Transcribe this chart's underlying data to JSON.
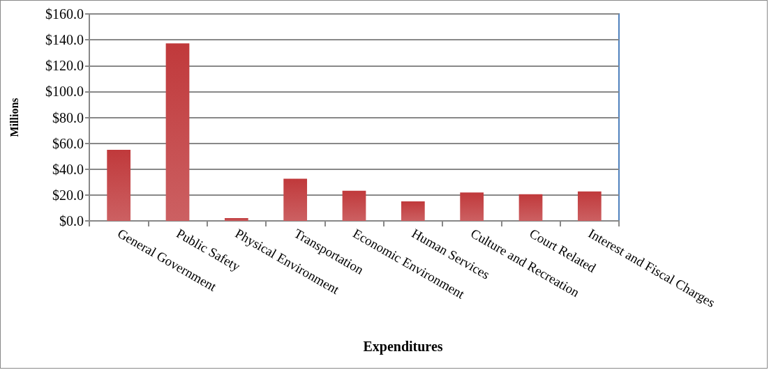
{
  "chart_data": {
    "type": "bar",
    "xlabel": "Expenditures",
    "ylabel": "Millions",
    "categories": [
      "General Government",
      "Public Safety",
      "Physical Environment",
      "Transportation",
      "Economic Environment",
      "Human Services",
      "Culture and Recreation",
      "Court Related",
      "Interest and Fiscal Charges"
    ],
    "values": [
      55,
      137.3,
      2.1,
      32.6,
      23.3,
      15.1,
      21.9,
      20.6,
      22.8
    ],
    "color": "#c0393b",
    "ylim": [
      0,
      160
    ],
    "yticks": [
      {
        "value": 0,
        "label": "$0.0"
      },
      {
        "value": 20,
        "label": "$20.0"
      },
      {
        "value": 40,
        "label": "$40.0"
      },
      {
        "value": 60,
        "label": "$60.0"
      },
      {
        "value": 80,
        "label": "$80.0"
      },
      {
        "value": 100,
        "label": "$100.0"
      },
      {
        "value": 120,
        "label": "$120.0"
      },
      {
        "value": 140,
        "label": "$140.0"
      },
      {
        "value": 160,
        "label": "$160.0"
      }
    ],
    "grid": "y"
  }
}
